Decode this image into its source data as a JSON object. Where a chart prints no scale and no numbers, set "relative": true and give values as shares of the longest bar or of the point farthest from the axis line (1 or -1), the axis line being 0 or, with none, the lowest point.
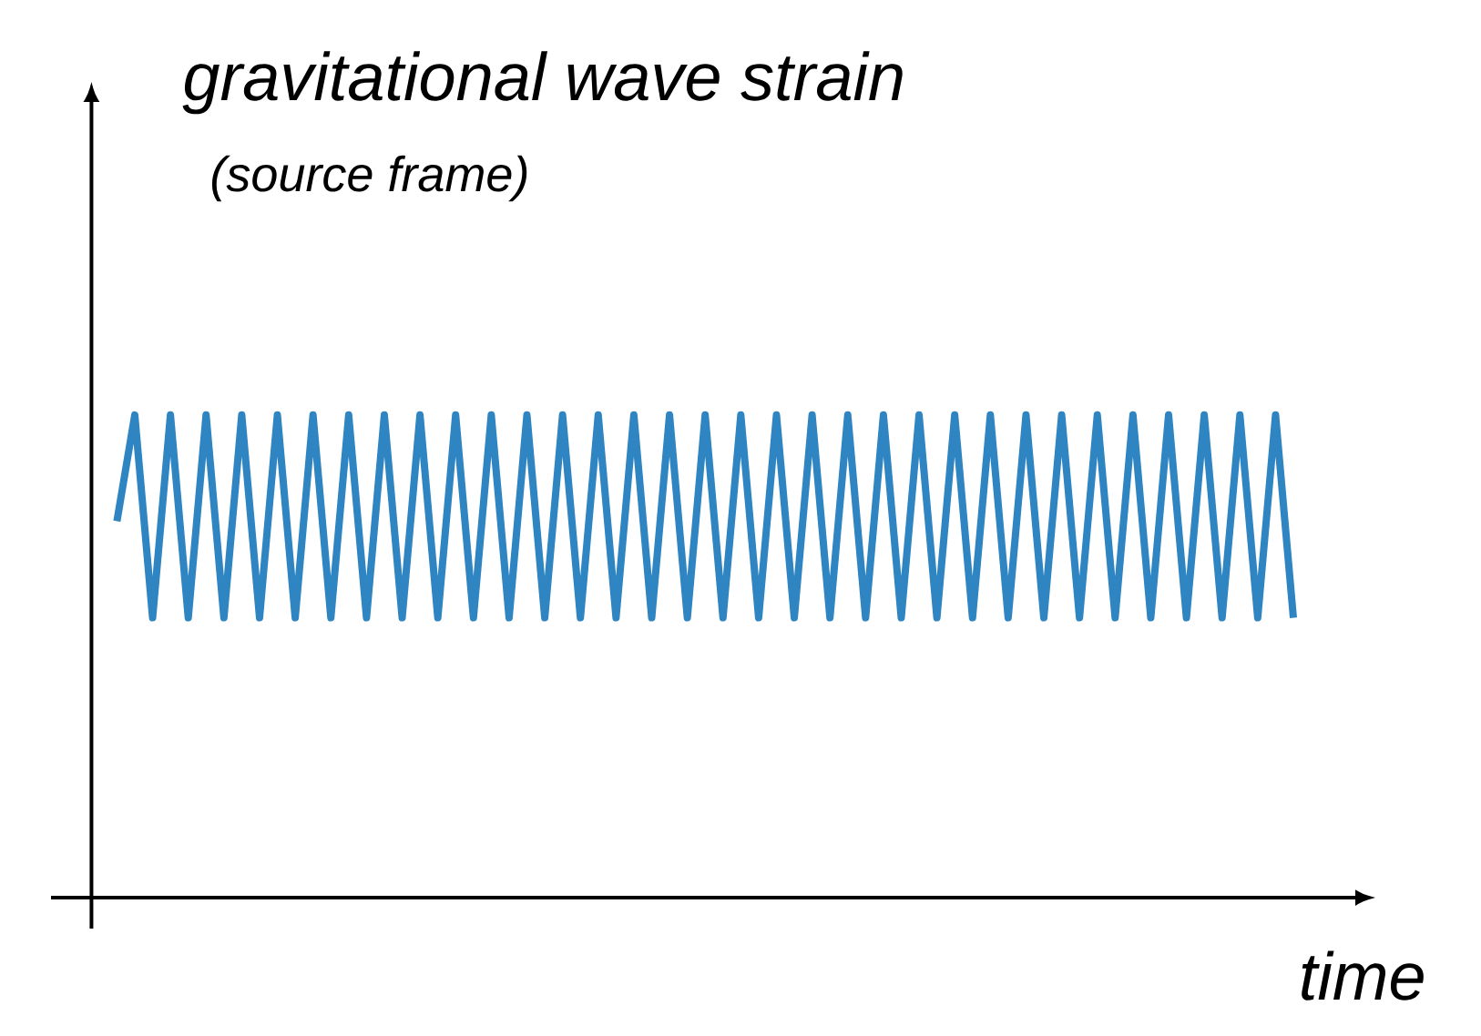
{
  "chart_data": {
    "type": "line",
    "title": "gravitational wave strain",
    "subtitle": "(source frame)",
    "xlabel": "time",
    "relative": true,
    "categories": [
      null,
      null,
      null,
      null,
      null,
      null,
      null,
      null,
      null,
      null,
      null,
      null,
      null,
      null,
      null,
      null,
      null,
      null,
      null,
      null,
      null,
      null,
      null,
      null,
      null,
      null,
      null,
      null,
      null,
      null,
      null,
      null,
      null,
      null,
      null,
      null,
      null,
      null,
      null,
      null,
      null,
      null,
      null,
      null,
      null,
      null,
      null,
      null,
      null,
      null,
      null,
      null,
      null,
      null,
      null,
      null,
      null,
      null,
      null,
      null,
      null,
      null,
      null,
      null,
      null,
      null,
      null
    ],
    "series": [
      {
        "color": "#2f84c2",
        "values": [
          0.78,
          1,
          0.58,
          1,
          0.58,
          1,
          0.58,
          1,
          0.58,
          1,
          0.58,
          1,
          0.58,
          1,
          0.58,
          1,
          0.58,
          1,
          0.58,
          1,
          0.58,
          1,
          0.58,
          1,
          0.58,
          1,
          0.58,
          1,
          0.58,
          1,
          0.58,
          1,
          0.58,
          1,
          0.58,
          1,
          0.58,
          1,
          0.58,
          1,
          0.58,
          1,
          0.58,
          1,
          0.58,
          1,
          0.58,
          1,
          0.58,
          1,
          0.58,
          1,
          0.58,
          1,
          0.58,
          1,
          0.58,
          1,
          0.58,
          1,
          0.58,
          1,
          0.58,
          1,
          0.58,
          1,
          0.58
        ]
      }
    ]
  }
}
